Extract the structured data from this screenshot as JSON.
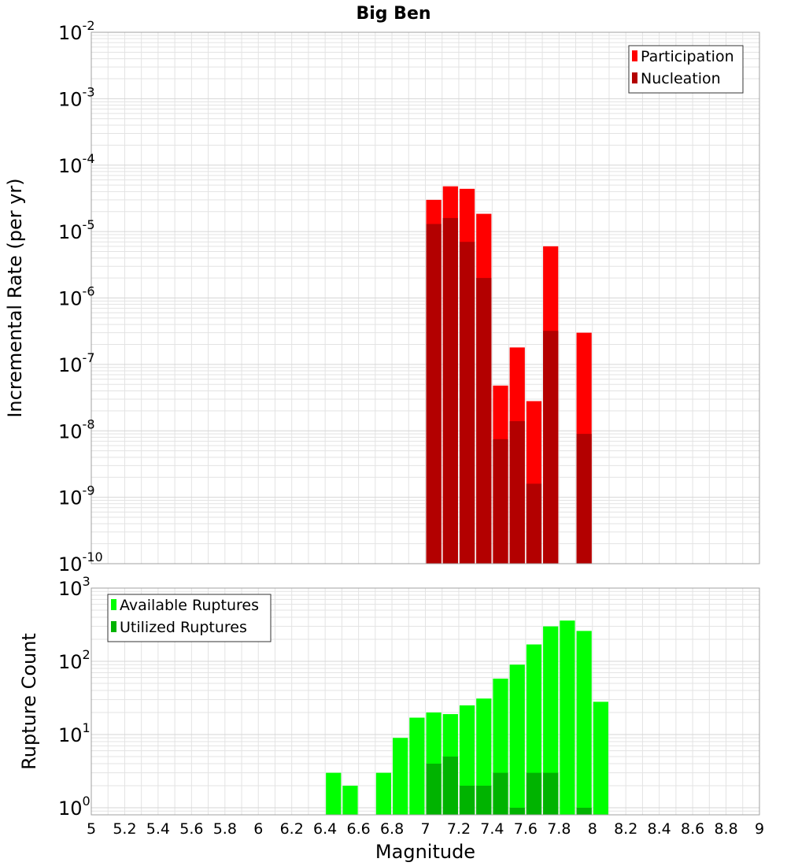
{
  "title": "Big Ben",
  "colors": {
    "participation": "#ff0000",
    "nucleation": "#b30000",
    "available": "#00ff00",
    "utilized": "#00b300",
    "grid": "#e3e3e3",
    "frame": "#a0a0a0"
  },
  "chart_data": [
    {
      "type": "bar",
      "name": "rate-panel",
      "ylabel": "Incremental Rate (per yr)",
      "xlabel": "",
      "yscale": "log",
      "ylim": [
        1e-10,
        0.01
      ],
      "xlim": [
        5,
        9
      ],
      "grid": true,
      "legend_position": "top-right",
      "y_ticks": [
        {
          "base": "10",
          "exp": "-10"
        },
        {
          "base": "10",
          "exp": "-9"
        },
        {
          "base": "10",
          "exp": "-8"
        },
        {
          "base": "10",
          "exp": "-7"
        },
        {
          "base": "10",
          "exp": "-6"
        },
        {
          "base": "10",
          "exp": "-5"
        },
        {
          "base": "10",
          "exp": "-4"
        },
        {
          "base": "10",
          "exp": "-3"
        },
        {
          "base": "10",
          "exp": "-2"
        }
      ],
      "series": [
        {
          "name": "Participation",
          "x": [
            7.05,
            7.15,
            7.25,
            7.35,
            7.45,
            7.55,
            7.65,
            7.75,
            7.95
          ],
          "values": [
            3e-05,
            4.8e-05,
            4.4e-05,
            1.85e-05,
            4.8e-08,
            1.8e-07,
            2.8e-08,
            6e-06,
            3e-07
          ]
        },
        {
          "name": "Nucleation",
          "x": [
            7.05,
            7.15,
            7.25,
            7.35,
            7.45,
            7.55,
            7.65,
            7.75,
            7.95
          ],
          "values": [
            1.3e-05,
            1.6e-05,
            7e-06,
            2e-06,
            7.5e-09,
            1.4e-08,
            1.6e-09,
            3.2e-07,
            9e-09
          ]
        }
      ]
    },
    {
      "type": "bar",
      "name": "count-panel",
      "ylabel": "Rupture Count",
      "xlabel": "Magnitude",
      "yscale": "log",
      "ylim": [
        0.8,
        1000
      ],
      "xlim": [
        5,
        9
      ],
      "grid": true,
      "legend_position": "top-left",
      "y_ticks": [
        {
          "base": "10",
          "exp": "0"
        },
        {
          "base": "10",
          "exp": "1"
        },
        {
          "base": "10",
          "exp": "2"
        },
        {
          "base": "10",
          "exp": "3"
        }
      ],
      "x_ticks": [
        "5",
        "5.2",
        "5.4",
        "5.6",
        "5.8",
        "6",
        "6.2",
        "6.4",
        "6.6",
        "6.8",
        "7",
        "7.2",
        "7.4",
        "7.6",
        "7.8",
        "8",
        "8.2",
        "8.4",
        "8.6",
        "8.8",
        "9"
      ],
      "series": [
        {
          "name": "Available Ruptures",
          "x": [
            6.45,
            6.55,
            6.75,
            6.85,
            6.95,
            7.05,
            7.15,
            7.25,
            7.35,
            7.45,
            7.55,
            7.65,
            7.75,
            7.85,
            7.95,
            8.05
          ],
          "values": [
            3,
            2,
            3,
            9,
            17,
            20,
            19,
            25,
            31,
            58,
            90,
            170,
            300,
            360,
            260,
            28
          ]
        },
        {
          "name": "Utilized Ruptures",
          "x": [
            7.05,
            7.15,
            7.25,
            7.35,
            7.45,
            7.55,
            7.65,
            7.75,
            7.95
          ],
          "values": [
            4,
            5,
            2,
            2,
            3,
            1,
            3,
            3,
            1
          ]
        }
      ]
    }
  ]
}
